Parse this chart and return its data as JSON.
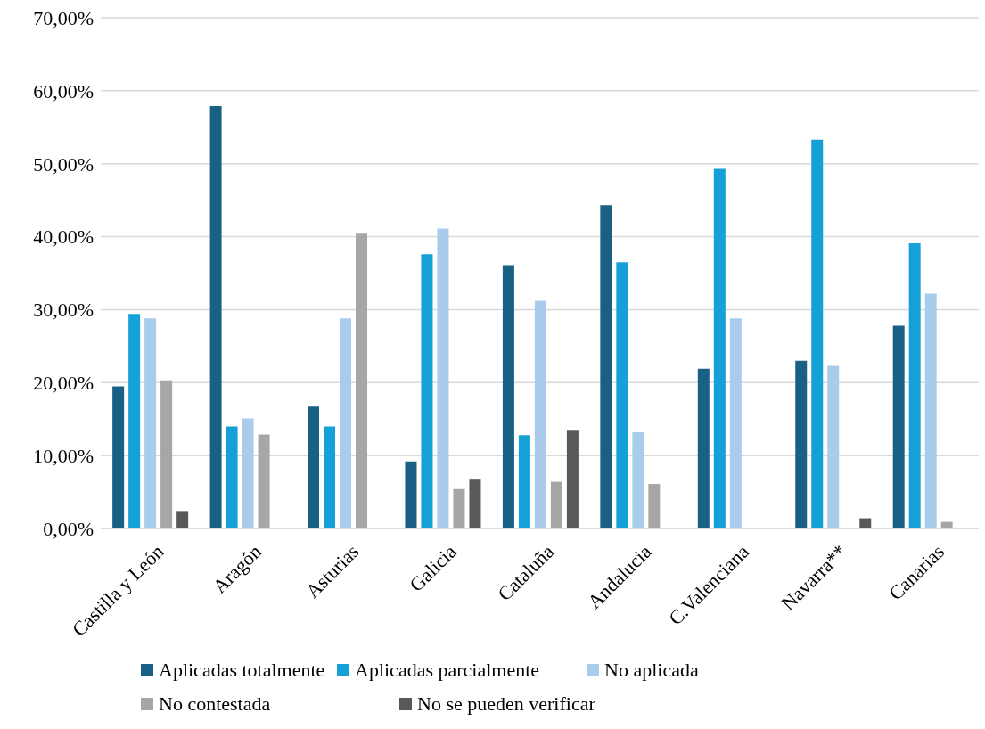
{
  "chart_data": {
    "type": "bar",
    "categories": [
      "Castilla y León",
      "Aragón",
      "Asturias",
      "Galicia",
      "Cataluña",
      "Andalucia",
      "C.Valenciana",
      "Navarra**",
      "Canarias"
    ],
    "series": [
      {
        "name": "Aplicadas totalmente",
        "color": "#1a5f84",
        "values": [
          19.5,
          57.9,
          16.7,
          9.2,
          36.1,
          44.3,
          21.9,
          23.0,
          27.8
        ]
      },
      {
        "name": "Aplicadas parcialmente",
        "color": "#16a0d8",
        "values": [
          29.4,
          14.0,
          14.0,
          37.6,
          12.8,
          36.5,
          49.3,
          53.3,
          39.1
        ]
      },
      {
        "name": "No aplicada",
        "color": "#a9cbec",
        "values": [
          28.8,
          15.1,
          28.8,
          41.1,
          31.2,
          13.2,
          28.8,
          22.3,
          32.2
        ]
      },
      {
        "name": "No contestada",
        "color": "#a6a6a6",
        "values": [
          20.3,
          12.9,
          40.4,
          5.4,
          6.4,
          6.1,
          null,
          null,
          0.9
        ]
      },
      {
        "name": "No se pueden verificar",
        "color": "#595959",
        "values": [
          2.4,
          null,
          null,
          6.7,
          13.4,
          null,
          null,
          1.4,
          null
        ]
      }
    ],
    "ylim": [
      0,
      70
    ],
    "yticks": [
      {
        "value": 0,
        "label": "0,00%"
      },
      {
        "value": 10,
        "label": "10,00%"
      },
      {
        "value": 20,
        "label": "20,00%"
      },
      {
        "value": 30,
        "label": "30,00%"
      },
      {
        "value": 40,
        "label": "40,00%"
      },
      {
        "value": 50,
        "label": "50,00%"
      },
      {
        "value": 60,
        "label": "60,00%"
      },
      {
        "value": 70,
        "label": "70,00%"
      }
    ],
    "grid": "y",
    "legend": "bottom"
  }
}
